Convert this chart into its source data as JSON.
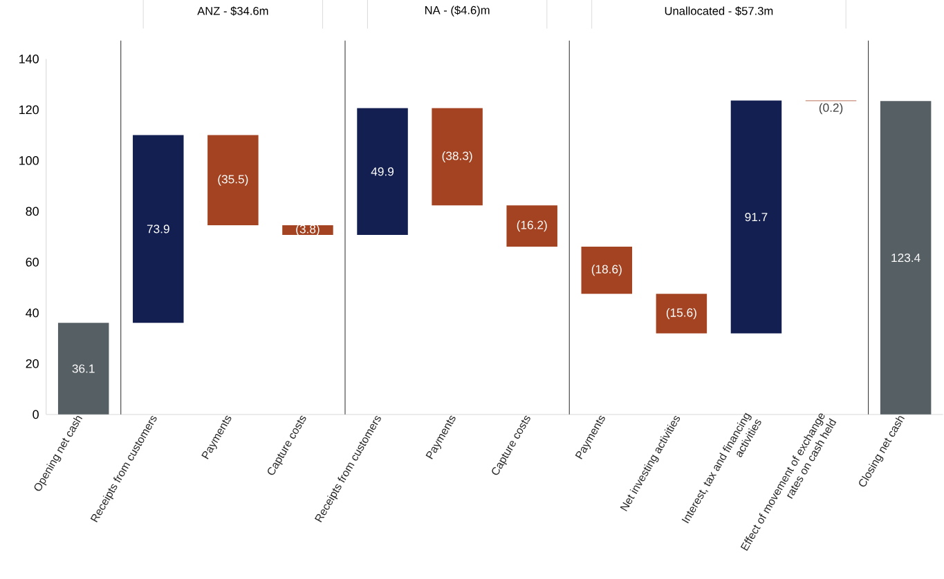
{
  "chart_data": {
    "type": "bar",
    "categories": [
      "Opening net cash",
      "Receipts from customers",
      "Payments",
      "Capture costs",
      "Receipts from customers",
      "Payments",
      "Capture costs",
      "Payments",
      "Net investing activities",
      "Interest, tax and financing activities",
      "Effect of movement of exchange rates on cash held",
      "Closing net cash"
    ],
    "values": [
      36.1,
      73.9,
      -35.5,
      -3.8,
      49.9,
      -38.3,
      -16.2,
      -18.6,
      -15.6,
      91.7,
      -0.2,
      123.4
    ],
    "base": [
      0,
      36.1,
      110.0,
      74.5,
      70.7,
      120.6,
      82.3,
      66.1,
      47.5,
      31.9,
      123.6,
      0
    ],
    "colors": [
      "#565f64",
      "#121f50",
      "#a34322",
      "#a34322",
      "#121f50",
      "#a34322",
      "#a34322",
      "#a34322",
      "#a34322",
      "#121f50",
      "#a34322",
      "#565f64"
    ],
    "value_labels": [
      "36.1",
      "73.9",
      "(35.5)",
      "(3.8)",
      "49.9",
      "(38.3)",
      "(16.2)",
      "(18.6)",
      "(15.6)",
      "91.7",
      "(0.2)",
      "123.4"
    ],
    "ylim": [
      0,
      140
    ],
    "yticks": [
      0,
      20,
      40,
      60,
      80,
      100,
      120,
      140
    ],
    "annotations": [
      "ANZ - $34.6m",
      "NA - ($4.6)m",
      "Unallocated - $57.3m"
    ],
    "grid": false
  }
}
